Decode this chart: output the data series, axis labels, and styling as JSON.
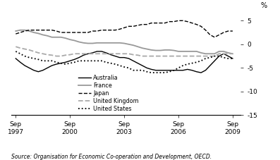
{
  "title": "",
  "ylabel": "%",
  "source_text": "Source: Organisation for Economic Co-operation and Development, OECD.",
  "xlim_start": 1997.5,
  "xlim_end": 2010.2,
  "ylim": [
    -15,
    7
  ],
  "yticks": [
    -15,
    -10,
    -5,
    0,
    5
  ],
  "xtick_labels": [
    "Sep\n1997",
    "Sep\n2000",
    "Sep\n2003",
    "Sep\n2006",
    "Sep\n2009"
  ],
  "xtick_positions": [
    1997.75,
    2000.75,
    2003.75,
    2006.75,
    2009.75
  ],
  "background_color": "#ffffff",
  "legend_order": [
    "Australia",
    "France",
    "Japan",
    "United Kingdom",
    "United States"
  ],
  "series": {
    "Australia": {
      "color": "#000000",
      "linestyle": "solid",
      "linewidth": 1.0,
      "x": [
        1997.75,
        1998.0,
        1998.25,
        1998.5,
        1998.75,
        1999.0,
        1999.25,
        1999.5,
        1999.75,
        2000.0,
        2000.25,
        2000.5,
        2000.75,
        2001.0,
        2001.25,
        2001.5,
        2001.75,
        2002.0,
        2002.25,
        2002.5,
        2002.75,
        2003.0,
        2003.25,
        2003.5,
        2003.75,
        2004.0,
        2004.25,
        2004.5,
        2004.75,
        2005.0,
        2005.25,
        2005.5,
        2005.75,
        2006.0,
        2006.25,
        2006.5,
        2006.75,
        2007.0,
        2007.25,
        2007.5,
        2007.75,
        2008.0,
        2008.25,
        2008.5,
        2008.75,
        2009.0,
        2009.25,
        2009.5,
        2009.75
      ],
      "y": [
        -3.0,
        -3.8,
        -4.5,
        -5.0,
        -5.5,
        -5.8,
        -5.5,
        -5.0,
        -4.5,
        -4.2,
        -4.0,
        -3.8,
        -3.5,
        -3.2,
        -2.8,
        -2.3,
        -2.0,
        -1.8,
        -1.5,
        -1.5,
        -1.8,
        -2.2,
        -2.5,
        -2.8,
        -2.8,
        -3.0,
        -3.5,
        -4.0,
        -4.5,
        -5.0,
        -5.3,
        -5.5,
        -5.5,
        -5.5,
        -5.5,
        -5.5,
        -5.5,
        -5.5,
        -5.3,
        -5.5,
        -5.8,
        -6.0,
        -5.5,
        -4.5,
        -3.5,
        -2.5,
        -2.0,
        -2.5,
        -3.0
      ]
    },
    "France": {
      "color": "#999999",
      "linestyle": "solid",
      "linewidth": 1.3,
      "x": [
        1997.75,
        1998.0,
        1998.25,
        1998.5,
        1998.75,
        1999.0,
        1999.25,
        1999.5,
        1999.75,
        2000.0,
        2000.25,
        2000.5,
        2000.75,
        2001.0,
        2001.25,
        2001.5,
        2001.75,
        2002.0,
        2002.25,
        2002.5,
        2002.75,
        2003.0,
        2003.25,
        2003.5,
        2003.75,
        2004.0,
        2004.25,
        2004.5,
        2004.75,
        2005.0,
        2005.25,
        2005.5,
        2005.75,
        2006.0,
        2006.25,
        2006.5,
        2006.75,
        2007.0,
        2007.25,
        2007.5,
        2007.75,
        2008.0,
        2008.25,
        2008.5,
        2008.75,
        2009.0,
        2009.25,
        2009.5,
        2009.75
      ],
      "y": [
        2.8,
        3.0,
        3.0,
        2.8,
        2.5,
        2.3,
        2.0,
        1.8,
        1.5,
        1.5,
        1.5,
        1.3,
        1.0,
        0.8,
        0.5,
        0.3,
        0.2,
        0.2,
        0.3,
        0.3,
        0.3,
        0.3,
        0.3,
        0.3,
        0.2,
        0.0,
        -0.2,
        -0.5,
        -0.8,
        -1.0,
        -1.2,
        -1.3,
        -1.3,
        -1.2,
        -1.2,
        -1.3,
        -1.5,
        -1.5,
        -1.5,
        -1.5,
        -1.5,
        -1.8,
        -2.0,
        -2.0,
        -2.0,
        -1.5,
        -1.5,
        -1.8,
        -2.0
      ]
    },
    "Japan": {
      "color": "#000000",
      "linestyle": "dashed",
      "linewidth": 1.0,
      "x": [
        1997.75,
        1998.0,
        1998.25,
        1998.5,
        1998.75,
        1999.0,
        1999.25,
        1999.5,
        1999.75,
        2000.0,
        2000.25,
        2000.5,
        2000.75,
        2001.0,
        2001.25,
        2001.5,
        2001.75,
        2002.0,
        2002.25,
        2002.5,
        2002.75,
        2003.0,
        2003.25,
        2003.5,
        2003.75,
        2004.0,
        2004.25,
        2004.5,
        2004.75,
        2005.0,
        2005.25,
        2005.5,
        2005.75,
        2006.0,
        2006.25,
        2006.5,
        2006.75,
        2007.0,
        2007.25,
        2007.5,
        2007.75,
        2008.0,
        2008.25,
        2008.5,
        2008.75,
        2009.0,
        2009.25,
        2009.5,
        2009.75
      ],
      "y": [
        2.2,
        2.5,
        2.8,
        3.0,
        3.0,
        3.0,
        3.0,
        3.0,
        3.0,
        2.8,
        2.5,
        2.5,
        2.5,
        2.5,
        2.5,
        2.5,
        2.5,
        2.8,
        2.8,
        3.0,
        3.0,
        3.0,
        3.0,
        3.2,
        3.5,
        3.8,
        3.8,
        4.0,
        4.2,
        4.2,
        4.5,
        4.5,
        4.5,
        4.5,
        4.8,
        4.8,
        5.0,
        5.0,
        4.8,
        4.5,
        4.2,
        3.8,
        3.0,
        2.0,
        1.5,
        2.0,
        2.5,
        2.8,
        2.8
      ]
    },
    "United Kingdom": {
      "color": "#aaaaaa",
      "linestyle": "dashed",
      "linewidth": 1.3,
      "x": [
        1997.75,
        1998.0,
        1998.25,
        1998.5,
        1998.75,
        1999.0,
        1999.25,
        1999.5,
        1999.75,
        2000.0,
        2000.25,
        2000.5,
        2000.75,
        2001.0,
        2001.25,
        2001.5,
        2001.75,
        2002.0,
        2002.25,
        2002.5,
        2002.75,
        2003.0,
        2003.25,
        2003.5,
        2003.75,
        2004.0,
        2004.25,
        2004.5,
        2004.75,
        2005.0,
        2005.25,
        2005.5,
        2005.75,
        2006.0,
        2006.25,
        2006.5,
        2006.75,
        2007.0,
        2007.25,
        2007.5,
        2007.75,
        2008.0,
        2008.25,
        2008.5,
        2008.75,
        2009.0,
        2009.25,
        2009.5,
        2009.75
      ],
      "y": [
        -0.5,
        -0.8,
        -1.0,
        -1.2,
        -1.5,
        -1.8,
        -2.0,
        -2.2,
        -2.3,
        -2.5,
        -2.5,
        -2.3,
        -2.2,
        -2.0,
        -2.0,
        -2.0,
        -2.0,
        -2.0,
        -2.0,
        -2.0,
        -2.0,
        -2.0,
        -2.0,
        -2.0,
        -2.0,
        -2.0,
        -2.2,
        -2.3,
        -2.5,
        -2.5,
        -2.5,
        -2.5,
        -2.5,
        -2.5,
        -2.5,
        -2.5,
        -2.5,
        -2.5,
        -2.5,
        -2.5,
        -2.5,
        -2.5,
        -2.5,
        -2.5,
        -2.5,
        -2.0,
        -2.0,
        -2.0,
        -2.0
      ]
    },
    "United States": {
      "color": "#000000",
      "linestyle": "dotted",
      "linewidth": 1.3,
      "x": [
        1997.75,
        1998.0,
        1998.25,
        1998.5,
        1998.75,
        1999.0,
        1999.25,
        1999.5,
        1999.75,
        2000.0,
        2000.25,
        2000.5,
        2000.75,
        2001.0,
        2001.25,
        2001.5,
        2001.75,
        2002.0,
        2002.25,
        2002.5,
        2002.75,
        2003.0,
        2003.25,
        2003.5,
        2003.75,
        2004.0,
        2004.25,
        2004.5,
        2004.75,
        2005.0,
        2005.25,
        2005.5,
        2005.75,
        2006.0,
        2006.25,
        2006.5,
        2006.75,
        2007.0,
        2007.25,
        2007.5,
        2007.75,
        2008.0,
        2008.25,
        2008.5,
        2008.75,
        2009.0,
        2009.25,
        2009.5,
        2009.75
      ],
      "y": [
        -1.5,
        -2.0,
        -2.5,
        -2.8,
        -3.0,
        -3.2,
        -3.5,
        -3.5,
        -3.5,
        -3.8,
        -4.0,
        -4.2,
        -4.0,
        -3.8,
        -3.5,
        -3.5,
        -3.5,
        -3.5,
        -3.5,
        -3.5,
        -3.8,
        -4.0,
        -4.2,
        -4.5,
        -4.8,
        -5.0,
        -5.5,
        -5.5,
        -5.5,
        -5.8,
        -6.0,
        -6.0,
        -6.0,
        -6.0,
        -5.8,
        -5.5,
        -5.0,
        -4.5,
        -4.2,
        -4.0,
        -3.8,
        -3.5,
        -3.0,
        -2.8,
        -2.5,
        -2.5,
        -2.8,
        -3.0,
        -3.0
      ]
    }
  }
}
